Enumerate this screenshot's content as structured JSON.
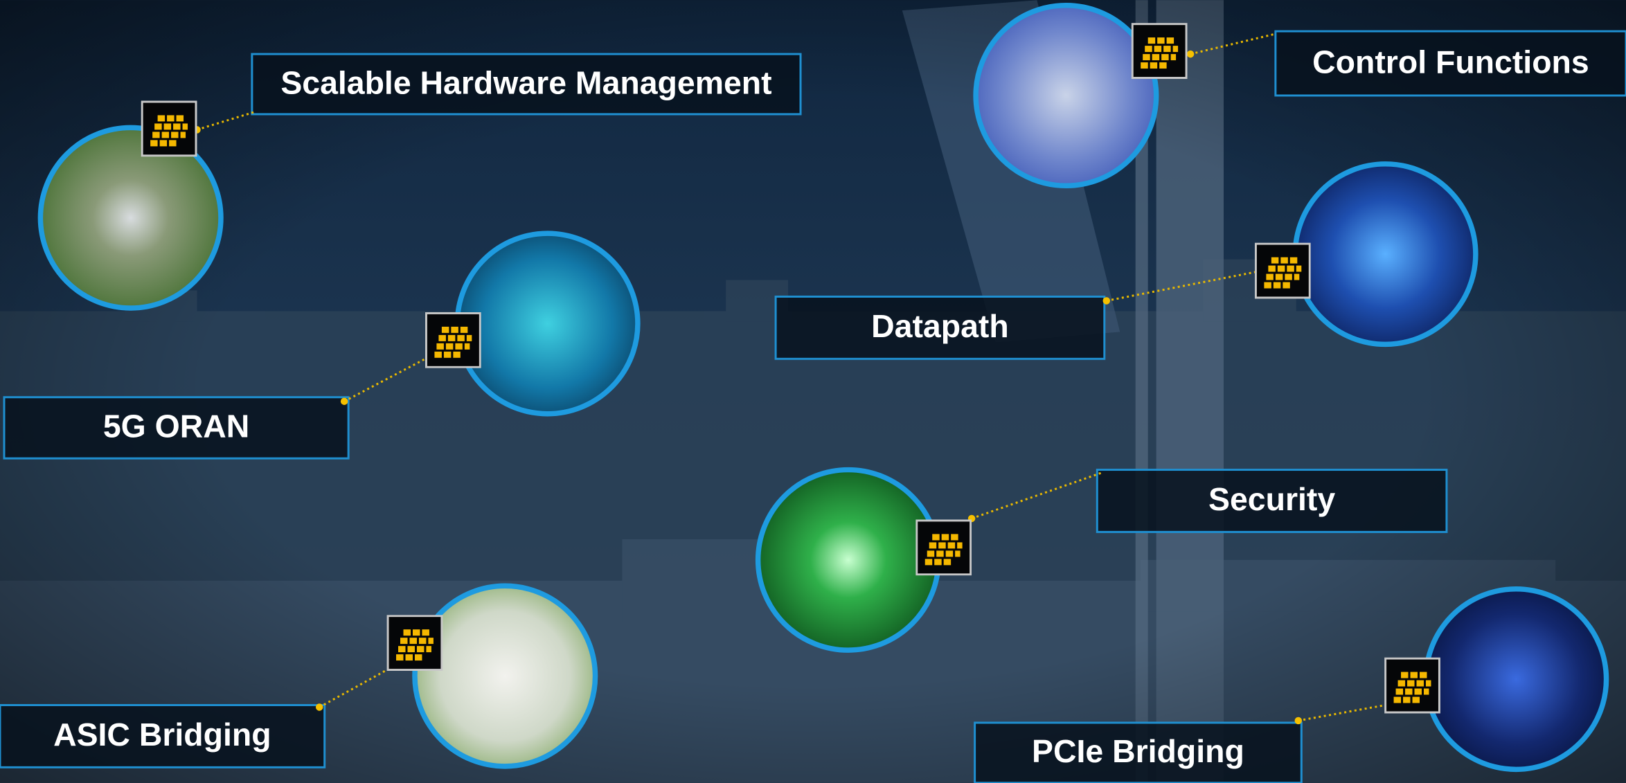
{
  "callouts": [
    {
      "label": "Scalable Hardware Management"
    },
    {
      "label": "5G ORAN"
    },
    {
      "label": "ASIC Bridging"
    },
    {
      "label": "Control Functions"
    },
    {
      "label": "Datapath"
    },
    {
      "label": "Security"
    },
    {
      "label": "PCIe Bridging"
    }
  ]
}
